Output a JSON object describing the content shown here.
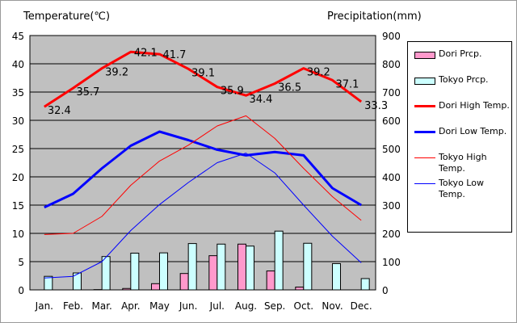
{
  "chart_data": {
    "type": "bar+line",
    "left_axis_title": "Temperature(℃)",
    "right_axis_title": "Precipitation(mm)",
    "categories": [
      "Jan.",
      "Feb.",
      "Mar.",
      "Apr.",
      "May",
      "Jun.",
      "Jul.",
      "Aug.",
      "Sep.",
      "Oct.",
      "Nov.",
      "Dec."
    ],
    "left_ylim": [
      0,
      45
    ],
    "left_ticks": [
      "0",
      "5",
      "10",
      "15",
      "20",
      "25",
      "30",
      "35",
      "40",
      "45"
    ],
    "right_ylim": [
      0,
      900
    ],
    "right_ticks": [
      "0",
      "100",
      "200",
      "300",
      "400",
      "500",
      "600",
      "700",
      "800",
      "900"
    ],
    "grid": true,
    "legend_position": "right",
    "series": [
      {
        "name": "Dori Prcp.",
        "kind": "bar",
        "axis": "right",
        "color": "#ff99cc",
        "values": [
          0,
          0,
          1,
          5,
          22,
          58,
          121,
          162,
          67,
          10,
          0,
          0
        ]
      },
      {
        "name": "Tokyo Prcp.",
        "kind": "bar",
        "axis": "right",
        "color": "#ccffff",
        "values": [
          48,
          60,
          118,
          130,
          131,
          164,
          162,
          155,
          208,
          165,
          93,
          40
        ]
      },
      {
        "name": "Dori High Temp.",
        "kind": "line",
        "axis": "left",
        "color": "#ff0000",
        "width": 3,
        "values": [
          32.4,
          35.7,
          39.2,
          42.1,
          41.7,
          39.1,
          35.9,
          34.4,
          36.5,
          39.2,
          37.1,
          33.3
        ],
        "labels": [
          "32.4",
          "35.7",
          "39.2",
          "42.1",
          "41.7",
          "39.1",
          "35.9",
          "34.4",
          "36.5",
          "39.2",
          "37.1",
          "33.3"
        ]
      },
      {
        "name": "Dori Low Temp.",
        "kind": "line",
        "axis": "left",
        "color": "#0000ff",
        "width": 3,
        "values": [
          14.6,
          17.0,
          21.5,
          25.5,
          28.0,
          26.5,
          24.8,
          23.8,
          24.4,
          23.8,
          18.0,
          15.0
        ]
      },
      {
        "name": "Tokyo High Temp.",
        "kind": "line",
        "axis": "left",
        "color": "#ff0000",
        "width": 1,
        "values": [
          9.8,
          10.0,
          13.0,
          18.5,
          22.8,
          25.6,
          29.0,
          30.8,
          26.8,
          21.5,
          16.5,
          12.3
        ]
      },
      {
        "name": "Tokyo Low Temp.",
        "kind": "line",
        "axis": "left",
        "color": "#0000ff",
        "width": 1,
        "values": [
          2.1,
          2.4,
          5.0,
          10.5,
          15.1,
          19.0,
          22.5,
          24.2,
          20.7,
          15.0,
          9.5,
          4.8
        ]
      }
    ]
  }
}
